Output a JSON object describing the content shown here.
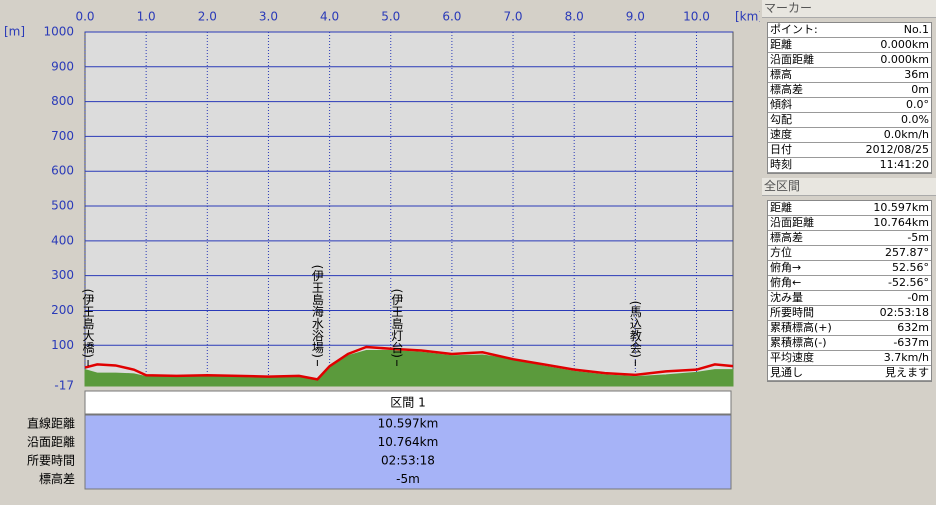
{
  "chart_data": {
    "type": "area",
    "y_unit": "[m]",
    "x_unit": "[km]",
    "xlim": [
      0,
      10.597
    ],
    "xticks": [
      {
        "value": 0,
        "label": "0.0"
      },
      {
        "value": 1,
        "label": "1.0"
      },
      {
        "value": 2,
        "label": "2.0"
      },
      {
        "value": 3,
        "label": "3.0"
      },
      {
        "value": 4,
        "label": "4.0"
      },
      {
        "value": 5,
        "label": "5.0"
      },
      {
        "value": 6,
        "label": "6.0"
      },
      {
        "value": 7,
        "label": "7.0"
      },
      {
        "value": 8,
        "label": "8.0"
      },
      {
        "value": 9,
        "label": "9.0"
      },
      {
        "value": 10,
        "label": "10.0"
      }
    ],
    "ylim": [
      -17,
      1000
    ],
    "yticks": [
      -17,
      100,
      200,
      300,
      400,
      500,
      600,
      700,
      800,
      900,
      1000
    ],
    "grid": true,
    "x": [
      0,
      0.2,
      0.5,
      0.8,
      1.0,
      1.5,
      2.0,
      2.5,
      3.0,
      3.5,
      3.8,
      4.0,
      4.3,
      4.6,
      5.0,
      5.5,
      6.0,
      6.5,
      7.0,
      7.5,
      8.0,
      8.5,
      9.0,
      9.5,
      10.0,
      10.3,
      10.597
    ],
    "series": [
      {
        "color": "#5b9a3c",
        "fill": true,
        "values": [
          30,
          20,
          20,
          18,
          10,
          8,
          10,
          8,
          6,
          8,
          0,
          35,
          70,
          85,
          85,
          80,
          70,
          72,
          60,
          40,
          25,
          15,
          10,
          15,
          22,
          30,
          30
        ]
      },
      {
        "color": "#e00000",
        "fill": false,
        "values": [
          36,
          45,
          42,
          30,
          14,
          12,
          14,
          12,
          10,
          12,
          2,
          40,
          75,
          95,
          90,
          85,
          75,
          80,
          60,
          45,
          30,
          20,
          15,
          25,
          30,
          45,
          40
        ]
      }
    ],
    "annotations": [
      {
        "text": "(伊王島大橋)",
        "x": 0.05
      },
      {
        "text": "(伊王島海水浴場)",
        "x": 3.8
      },
      {
        "text": "(伊王島灯台)",
        "x": 5.1
      },
      {
        "text": "(馬込教会)",
        "x": 9.0
      }
    ]
  },
  "section": {
    "header": "区間 1",
    "rows": [
      [
        "直線距離",
        "10.597km"
      ],
      [
        "沿面距離",
        "10.764km"
      ],
      [
        "所要時間",
        "02:53:18"
      ],
      [
        "標高差",
        "-5m"
      ]
    ]
  },
  "marker": {
    "title": "マーカー",
    "rows": [
      [
        "ポイント:",
        "No.1"
      ],
      [
        "距離",
        "0.000km"
      ],
      [
        "沿面距離",
        "0.000km"
      ],
      [
        "標高",
        "36m"
      ],
      [
        "標高差",
        "0m"
      ],
      [
        "傾斜",
        "0.0°"
      ],
      [
        "勾配",
        "0.0%"
      ],
      [
        "速度",
        "0.0km/h"
      ],
      [
        "日付",
        "2012/08/25"
      ],
      [
        "時刻",
        "11:41:20"
      ]
    ]
  },
  "total": {
    "title": "全区間",
    "rows": [
      [
        "距離",
        "10.597km"
      ],
      [
        "沿面距離",
        "10.764km"
      ],
      [
        "標高差",
        "-5m"
      ],
      [
        "方位",
        "257.87°"
      ],
      [
        "俯角→",
        "52.56°"
      ],
      [
        "俯角←",
        "-52.56°"
      ],
      [
        "沈み量",
        "-0m"
      ],
      [
        "所要時間",
        "02:53:18"
      ],
      [
        "累積標高(+)",
        "632m"
      ],
      [
        "累積標高(-)",
        "-637m"
      ],
      [
        "平均速度",
        "3.7km/h"
      ],
      [
        "見通し",
        "見えます"
      ]
    ]
  }
}
